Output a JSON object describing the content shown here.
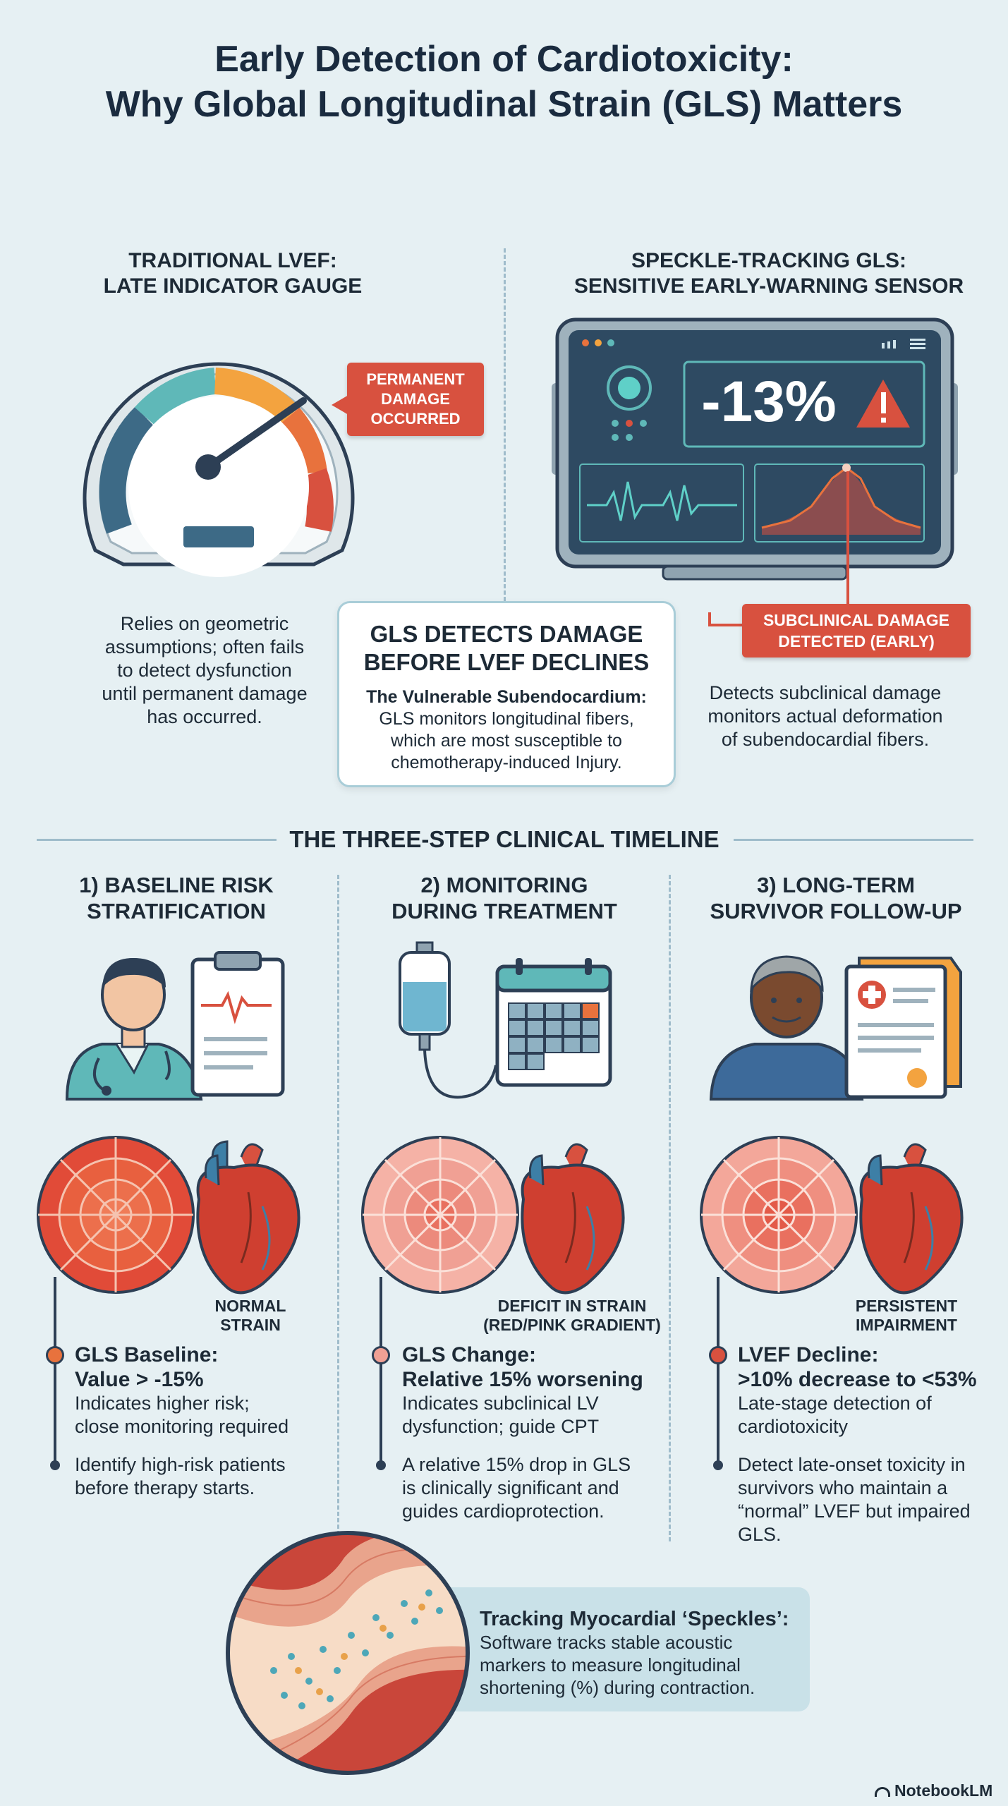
{
  "title": {
    "line1": "Early Detection of Cardiotoxicity:",
    "line2": "Why Global Longitudinal Strain (GLS) Matters"
  },
  "lvef": {
    "heading_line1": "TRADITIONAL LVEF:",
    "heading_line2": "LATE INDICATOR GAUGE",
    "callout_line1": "PERMANENT",
    "callout_line2": "DAMAGE",
    "callout_line3": "OCCURRED",
    "desc": [
      "Relies on geometric",
      "assumptions; often fails",
      "to detect dysfunction",
      "until permanent damage",
      "has occurred."
    ]
  },
  "gls": {
    "heading_line1": "SPECKLE-TRACKING GLS:",
    "heading_line2": "SENSITIVE EARLY-WARNING SENSOR",
    "screen_value": "-13%",
    "callout_line1": "SUBCLINICAL DAMAGE",
    "callout_line2": "DETECTED (EARLY)",
    "desc": [
      "Detects subclinical damage",
      "monitors actual deformation",
      "of subendocardial fibers."
    ]
  },
  "center_box": {
    "heading_line1": "GLS DETECTS DAMAGE",
    "heading_line2": "BEFORE LVEF DECLINES",
    "subhead": "The Vulnerable Subendocardium:",
    "desc": [
      "GLS monitors longitudinal fibers,",
      "which are most susceptible to",
      "chemotherapy-induced Injury."
    ]
  },
  "timeline": {
    "heading": "THE THREE-STEP CLINICAL TIMELINE",
    "steps": [
      {
        "heading_line1": "1) BASELINE RISK",
        "heading_line2": "STRATIFICATION",
        "label_line1": "NORMAL",
        "label_line2": "STRAIN",
        "metric_line1": "GLS Baseline:",
        "metric_line2": "Value > -15%",
        "metric_desc": [
          "Indicates higher risk;",
          "close monitoring required"
        ],
        "note": [
          "Identify high-risk patients",
          "before therapy starts."
        ]
      },
      {
        "heading_line1": "2) MONITORING",
        "heading_line2": "DURING TREATMENT",
        "label_line1": "DEFICIT IN STRAIN",
        "label_line2": "(RED/PINK GRADIENT)",
        "metric_line1": "GLS Change:",
        "metric_line2": "Relative 15% worsening",
        "metric_desc": [
          "Indicates subclinical LV",
          "dysfunction; guide CPT"
        ],
        "note": [
          "A relative 15% drop in GLS",
          "is clinically significant and",
          "guides cardioprotection."
        ]
      },
      {
        "heading_line1": "3) LONG-TERM",
        "heading_line2": "SURVIVOR FOLLOW-UP",
        "label_line1": "PERSISTENT",
        "label_line2": "IMPAIRMENT",
        "metric_line1": "LVEF Decline:",
        "metric_line2": ">10% decrease to <53%",
        "metric_desc": [
          "Late-stage detection of",
          "cardiotoxicity"
        ],
        "note": [
          "Detect late-onset toxicity in",
          "survivors who maintain a",
          "“normal” LVEF but impaired",
          "GLS."
        ]
      }
    ]
  },
  "speckles": {
    "title": "Tracking Myocardial ‘Speckles’:",
    "desc": [
      "Software tracks stable acoustic",
      "markers to measure longitudinal",
      "shortening (%) during contraction."
    ]
  },
  "footer": {
    "brand": "NotebookLM"
  },
  "colors": {
    "accent_red": "#d8513f",
    "navy": "#1a2b3f",
    "teal": "#5fb8b8",
    "background": "#e6f0f3"
  }
}
